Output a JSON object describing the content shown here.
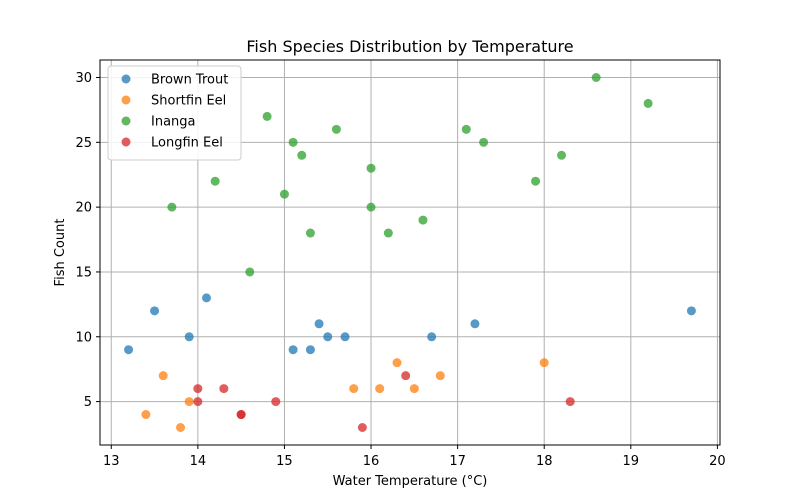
{
  "chart_data": {
    "type": "scatter",
    "title": "Fish Species Distribution by Temperature",
    "xlabel": "Water Temperature (°C)",
    "ylabel": "Fish Count",
    "xlim": [
      12.87,
      20.03
    ],
    "ylim": [
      1.65,
      31.35
    ],
    "xticks": [
      13,
      14,
      15,
      16,
      17,
      18,
      19,
      20
    ],
    "yticks": [
      5,
      10,
      15,
      20,
      25,
      30
    ],
    "grid": true,
    "legend_position": "top-left",
    "series": [
      {
        "name": "Brown Trout",
        "color": "#1f77b4",
        "points": [
          [
            13.2,
            9
          ],
          [
            13.5,
            12
          ],
          [
            13.9,
            10
          ],
          [
            14.1,
            13
          ],
          [
            15.1,
            9
          ],
          [
            15.3,
            9
          ],
          [
            15.4,
            11
          ],
          [
            15.5,
            10
          ],
          [
            15.7,
            10
          ],
          [
            16.7,
            10
          ],
          [
            17.2,
            11
          ],
          [
            19.7,
            12
          ]
        ]
      },
      {
        "name": "Shortfin Eel",
        "color": "#ff7f0e",
        "points": [
          [
            13.4,
            4
          ],
          [
            13.6,
            7
          ],
          [
            13.8,
            3
          ],
          [
            13.9,
            5
          ],
          [
            15.8,
            6
          ],
          [
            16.1,
            6
          ],
          [
            16.3,
            8
          ],
          [
            16.5,
            6
          ],
          [
            16.8,
            7
          ],
          [
            18.0,
            8
          ]
        ]
      },
      {
        "name": "Inanga",
        "color": "#2ca02c",
        "points": [
          [
            13.7,
            20
          ],
          [
            14.2,
            22
          ],
          [
            14.6,
            15
          ],
          [
            14.8,
            27
          ],
          [
            15.0,
            21
          ],
          [
            15.1,
            25
          ],
          [
            15.2,
            24
          ],
          [
            15.3,
            18
          ],
          [
            15.6,
            26
          ],
          [
            16.0,
            23
          ],
          [
            16.0,
            20
          ],
          [
            16.2,
            18
          ],
          [
            16.6,
            19
          ],
          [
            17.1,
            26
          ],
          [
            17.3,
            25
          ],
          [
            17.9,
            22
          ],
          [
            18.2,
            24
          ],
          [
            18.6,
            30
          ],
          [
            19.2,
            28
          ]
        ]
      },
      {
        "name": "Longfin Eel",
        "color": "#d62728",
        "points": [
          [
            14.0,
            6
          ],
          [
            14.0,
            5
          ],
          [
            14.3,
            6
          ],
          [
            14.5,
            4
          ],
          [
            14.5,
            4
          ],
          [
            14.9,
            5
          ],
          [
            15.9,
            3
          ],
          [
            16.4,
            7
          ],
          [
            18.3,
            5
          ]
        ]
      }
    ]
  }
}
